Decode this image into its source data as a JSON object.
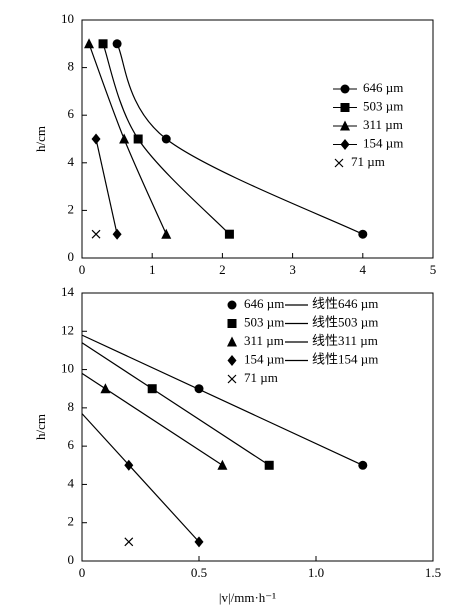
{
  "chart_data": [
    {
      "type": "line",
      "ylabel": "h/cm",
      "xlim": [
        0,
        5
      ],
      "xticks": [
        0,
        1,
        2,
        3,
        4,
        5
      ],
      "ylim": [
        0,
        10
      ],
      "yticks": [
        0,
        2,
        4,
        6,
        8,
        10
      ],
      "legend": "upper right",
      "series": [
        {
          "name": "646 µm",
          "color": "#000000",
          "marker": "circle",
          "line": "smooth",
          "x": [
            0.5,
            1.2,
            4
          ],
          "values": [
            9,
            5,
            1
          ]
        },
        {
          "name": "503 µm",
          "color": "#000000",
          "marker": "square",
          "line": "smooth",
          "x": [
            0.3,
            0.8,
            2.1
          ],
          "values": [
            9,
            5,
            1
          ]
        },
        {
          "name": "311 µm",
          "color": "#000000",
          "marker": "triangle",
          "line": "smooth",
          "x": [
            0.1,
            0.6,
            1.2
          ],
          "values": [
            9,
            5,
            1
          ]
        },
        {
          "name": "154 µm",
          "color": "#000000",
          "marker": "diamond",
          "line": "smooth",
          "x": [
            0.2,
            0.5
          ],
          "values": [
            5,
            1
          ]
        },
        {
          "name": "71 µm",
          "color": "#000000",
          "marker": "x",
          "line": "none",
          "x": [
            0.2
          ],
          "values": [
            1
          ]
        }
      ]
    },
    {
      "type": "scatter",
      "ylabel": "h/cm",
      "xlabel": "|v|/mm·h⁻¹",
      "xlim": [
        0,
        1.5
      ],
      "xticks": [
        0,
        0.5,
        {
          "value": 1,
          "label": "1.0"
        },
        1.5
      ],
      "ylim": [
        0,
        14
      ],
      "yticks": [
        0,
        2,
        4,
        6,
        8,
        10,
        12,
        14
      ],
      "legend": "upper right",
      "series": [
        {
          "name": "646 µm",
          "color": "#000000",
          "marker": "circle",
          "line": "none",
          "x": [
            0.5,
            1.2
          ],
          "values": [
            9,
            5
          ]
        },
        {
          "name": "503 µm",
          "color": "#000000",
          "marker": "square",
          "line": "none",
          "x": [
            0.3,
            0.8
          ],
          "values": [
            9,
            5
          ]
        },
        {
          "name": "311 µm",
          "color": "#000000",
          "marker": "triangle",
          "line": "none",
          "x": [
            0.1,
            0.6
          ],
          "values": [
            9,
            5
          ]
        },
        {
          "name": "154 µm",
          "color": "#000000",
          "marker": "diamond",
          "line": "none",
          "x": [
            0.2,
            0.5
          ],
          "values": [
            5,
            1
          ]
        },
        {
          "name": "71 µm",
          "color": "#000000",
          "marker": "x",
          "line": "none",
          "x": [
            0.2
          ],
          "values": [
            1
          ]
        },
        {
          "name": "线性646 µm",
          "color": "#000000",
          "marker": "none",
          "line": "straight",
          "x": [
            0,
            1.2
          ],
          "values": [
            11.8,
            5
          ]
        },
        {
          "name": "线性503 µm",
          "color": "#000000",
          "marker": "none",
          "line": "straight",
          "x": [
            0,
            0.8
          ],
          "values": [
            11.4,
            5
          ]
        },
        {
          "name": "线性311 µm",
          "color": "#000000",
          "marker": "none",
          "line": "straight",
          "x": [
            0,
            0.6
          ],
          "values": [
            9.8,
            5
          ]
        },
        {
          "name": "线性154 µm",
          "color": "#000000",
          "marker": "none",
          "line": "straight",
          "x": [
            0,
            0.5
          ],
          "values": [
            7.7,
            1
          ]
        }
      ]
    }
  ]
}
